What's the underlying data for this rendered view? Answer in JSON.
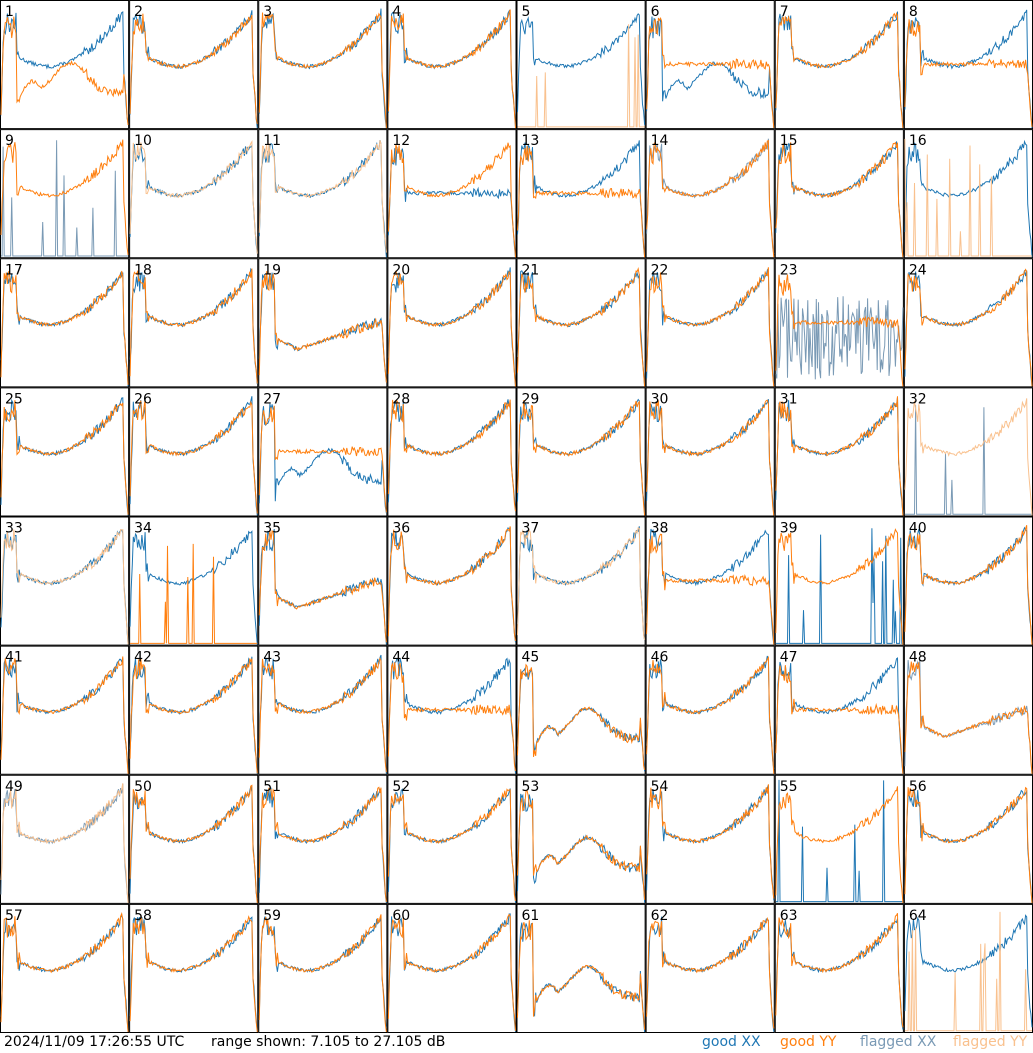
{
  "colors": {
    "good_xx": "#1f77b4",
    "good_yy": "#ff7f0e",
    "flagged_xx": "#7a9ab5",
    "flagged_yy": "#f9c18e"
  },
  "footer": {
    "timestamp": "2024/11/09 17:26:55 UTC",
    "range": "range shown: 7.105 to 27.105 dB",
    "legend": {
      "good_xx": "good XX",
      "good_yy": "good YY",
      "flagged_xx": "flagged XX",
      "flagged_yy": "flagged YY"
    }
  },
  "chart_data": {
    "type": "line",
    "y_range_db": [
      7.105,
      27.105
    ],
    "panels": [
      {
        "id": "1",
        "shape": "a",
        "xx": "good",
        "yy": "good",
        "xx_shape": "a",
        "yy_shape": "dip"
      },
      {
        "id": "2",
        "shape": "a",
        "xx": "good",
        "yy": "good"
      },
      {
        "id": "3",
        "shape": "a",
        "xx": "good",
        "yy": "good"
      },
      {
        "id": "4",
        "shape": "a",
        "xx": "good",
        "yy": "good"
      },
      {
        "id": "5",
        "shape": "a",
        "xx": "good",
        "yy": "flagged",
        "yy_shape": "spikes"
      },
      {
        "id": "6",
        "shape": "dip",
        "xx": "good",
        "yy": "good",
        "yy_shape": "flat"
      },
      {
        "id": "7",
        "shape": "a",
        "xx": "good",
        "yy": "good"
      },
      {
        "id": "8",
        "shape": "a",
        "xx": "good",
        "yy": "good",
        "yy_shape": "flat"
      },
      {
        "id": "9",
        "shape": "a",
        "xx": "flagged",
        "yy": "good",
        "xx_shape": "spikes"
      },
      {
        "id": "10",
        "shape": "a",
        "xx": "good",
        "yy": "flagged"
      },
      {
        "id": "11",
        "shape": "a",
        "xx": "good",
        "yy": "flagged"
      },
      {
        "id": "12",
        "shape": "a",
        "xx": "good",
        "yy": "good",
        "xx_shape": "flat"
      },
      {
        "id": "13",
        "shape": "a",
        "xx": "good",
        "yy": "good",
        "yy_shape": "flat"
      },
      {
        "id": "14",
        "shape": "a",
        "xx": "flagged",
        "yy": "good"
      },
      {
        "id": "15",
        "shape": "a",
        "xx": "good",
        "yy": "good"
      },
      {
        "id": "16",
        "shape": "a",
        "xx": "good",
        "yy": "flagged",
        "yy_shape": "spikes"
      },
      {
        "id": "17",
        "shape": "a",
        "xx": "good",
        "yy": "good"
      },
      {
        "id": "18",
        "shape": "a",
        "xx": "good",
        "yy": "good"
      },
      {
        "id": "19",
        "shape": "b",
        "xx": "good",
        "yy": "good"
      },
      {
        "id": "20",
        "shape": "a",
        "xx": "good",
        "yy": "good"
      },
      {
        "id": "21",
        "shape": "a",
        "xx": "good",
        "yy": "good"
      },
      {
        "id": "22",
        "shape": "a",
        "xx": "good",
        "yy": "good"
      },
      {
        "id": "23",
        "shape": "a",
        "xx": "flagged",
        "yy": "good",
        "xx_shape": "noise",
        "yy_shape": "flat"
      },
      {
        "id": "24",
        "shape": "a",
        "xx": "good",
        "yy": "good"
      },
      {
        "id": "25",
        "shape": "a",
        "xx": "good",
        "yy": "good"
      },
      {
        "id": "26",
        "shape": "a",
        "xx": "good",
        "yy": "good"
      },
      {
        "id": "27",
        "shape": "dip",
        "xx": "good",
        "yy": "good",
        "yy_shape": "flat"
      },
      {
        "id": "28",
        "shape": "a",
        "xx": "good",
        "yy": "good"
      },
      {
        "id": "29",
        "shape": "a",
        "xx": "good",
        "yy": "good"
      },
      {
        "id": "30",
        "shape": "a",
        "xx": "good",
        "yy": "good"
      },
      {
        "id": "31",
        "shape": "a",
        "xx": "good",
        "yy": "good"
      },
      {
        "id": "32",
        "shape": "a",
        "xx": "flagged",
        "yy": "flagged",
        "xx_shape": "spikes"
      },
      {
        "id": "33",
        "shape": "a",
        "xx": "good",
        "yy": "flagged"
      },
      {
        "id": "34",
        "shape": "a",
        "xx": "good",
        "yy": "good",
        "yy_shape": "spikes"
      },
      {
        "id": "35",
        "shape": "b",
        "xx": "good",
        "yy": "good"
      },
      {
        "id": "36",
        "shape": "a",
        "xx": "good",
        "yy": "good"
      },
      {
        "id": "37",
        "shape": "a",
        "xx": "good",
        "yy": "flagged"
      },
      {
        "id": "38",
        "shape": "a",
        "xx": "good",
        "yy": "good",
        "yy_shape": "flat"
      },
      {
        "id": "39",
        "shape": "a",
        "xx": "good",
        "yy": "good",
        "xx_shape": "spikes"
      },
      {
        "id": "40",
        "shape": "a",
        "xx": "good",
        "yy": "good"
      },
      {
        "id": "41",
        "shape": "a",
        "xx": "good",
        "yy": "good"
      },
      {
        "id": "42",
        "shape": "a",
        "xx": "good",
        "yy": "good"
      },
      {
        "id": "43",
        "shape": "a",
        "xx": "good",
        "yy": "good"
      },
      {
        "id": "44",
        "shape": "a",
        "xx": "good",
        "yy": "good",
        "yy_shape": "flat"
      },
      {
        "id": "45",
        "shape": "dip",
        "xx": "good",
        "yy": "good"
      },
      {
        "id": "46",
        "shape": "a",
        "xx": "good",
        "yy": "good"
      },
      {
        "id": "47",
        "shape": "a",
        "xx": "good",
        "yy": "good",
        "yy_shape": "flat"
      },
      {
        "id": "48",
        "shape": "b",
        "xx": "flagged",
        "yy": "good"
      },
      {
        "id": "49",
        "shape": "a",
        "xx": "flagged",
        "yy": "flagged"
      },
      {
        "id": "50",
        "shape": "a",
        "xx": "good",
        "yy": "good"
      },
      {
        "id": "51",
        "shape": "a",
        "xx": "good",
        "yy": "good"
      },
      {
        "id": "52",
        "shape": "a",
        "xx": "good",
        "yy": "good"
      },
      {
        "id": "53",
        "shape": "dip",
        "xx": "good",
        "yy": "good"
      },
      {
        "id": "54",
        "shape": "a",
        "xx": "good",
        "yy": "good"
      },
      {
        "id": "55",
        "shape": "a",
        "xx": "good",
        "yy": "good",
        "xx_shape": "spikes"
      },
      {
        "id": "56",
        "shape": "a",
        "xx": "good",
        "yy": "good"
      },
      {
        "id": "57",
        "shape": "a",
        "xx": "good",
        "yy": "good"
      },
      {
        "id": "58",
        "shape": "a",
        "xx": "good",
        "yy": "good"
      },
      {
        "id": "59",
        "shape": "a",
        "xx": "good",
        "yy": "good"
      },
      {
        "id": "60",
        "shape": "a",
        "xx": "good",
        "yy": "good"
      },
      {
        "id": "61",
        "shape": "dip",
        "xx": "good",
        "yy": "good"
      },
      {
        "id": "62",
        "shape": "a",
        "xx": "good",
        "yy": "good"
      },
      {
        "id": "63",
        "shape": "a",
        "xx": "good",
        "yy": "good"
      },
      {
        "id": "64",
        "shape": "a",
        "xx": "good",
        "yy": "flagged",
        "yy_shape": "spikes"
      }
    ]
  }
}
